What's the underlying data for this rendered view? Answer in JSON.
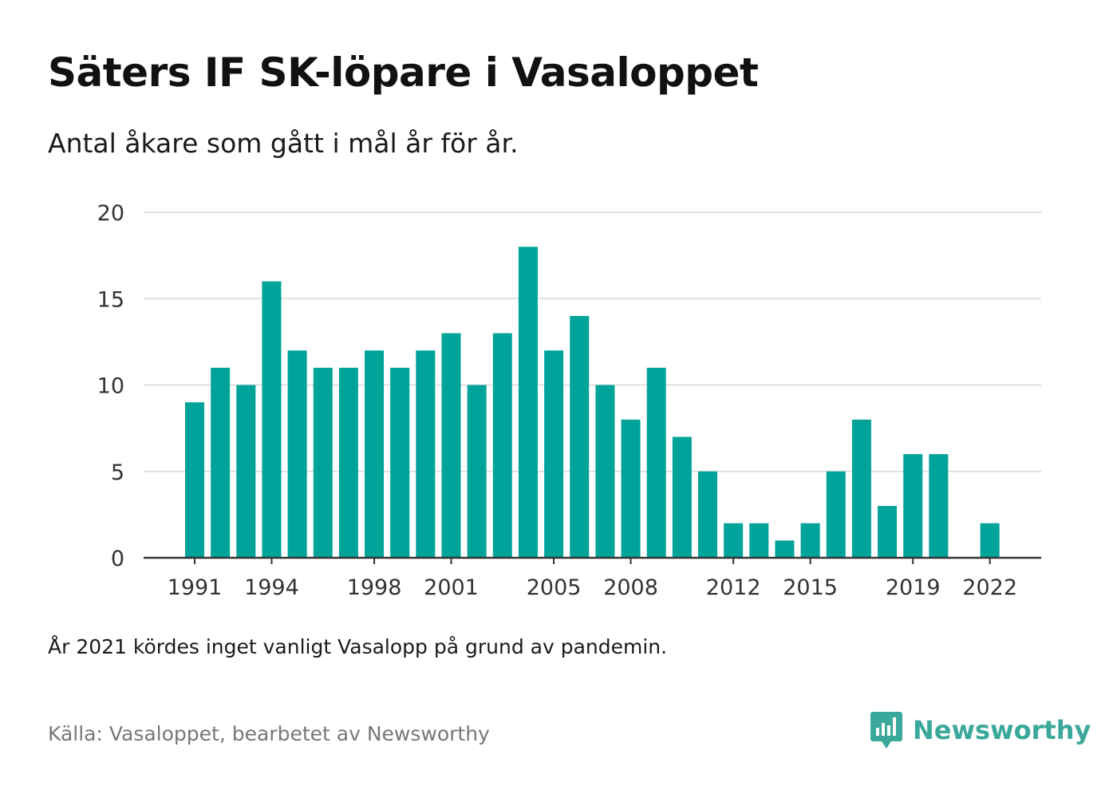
{
  "title": "Säters IF SK-löpare i Vasaloppet",
  "subtitle": "Antal åkare som gått i mål år för år.",
  "note": "År 2021 kördes inget vanligt Vasalopp på grund av pandemin.",
  "source": "Källa: Vasaloppet, bearbetet av Newsworthy",
  "brand": {
    "name": "Newsworthy",
    "icon": "newsworthy-logo-icon"
  },
  "colors": {
    "bar": "#00a39a",
    "grid": "#e0e0e0",
    "axis": "#333333",
    "brand": "#3aa89a"
  },
  "chart_data": {
    "type": "bar",
    "title": "Säters IF SK-löpare i Vasaloppet",
    "subtitle": "Antal åkare som gått i mål år för år.",
    "x": [
      1991,
      1992,
      1993,
      1994,
      1995,
      1996,
      1997,
      1998,
      1999,
      2000,
      2001,
      2002,
      2003,
      2004,
      2005,
      2006,
      2007,
      2008,
      2009,
      2010,
      2011,
      2012,
      2013,
      2014,
      2015,
      2016,
      2017,
      2018,
      2019,
      2020,
      2021,
      2022
    ],
    "values": [
      9,
      11,
      10,
      16,
      12,
      11,
      11,
      12,
      11,
      12,
      13,
      10,
      13,
      18,
      12,
      14,
      10,
      8,
      11,
      7,
      5,
      2,
      2,
      1,
      2,
      5,
      8,
      3,
      6,
      6,
      null,
      2
    ],
    "xticks": [
      1991,
      1994,
      1998,
      2001,
      2005,
      2008,
      2012,
      2015,
      2019,
      2022
    ],
    "yticks": [
      0,
      5,
      10,
      15,
      20
    ],
    "ylim": [
      0,
      20
    ],
    "xlabel": "",
    "ylabel": "",
    "grid": true,
    "legend": "none"
  }
}
